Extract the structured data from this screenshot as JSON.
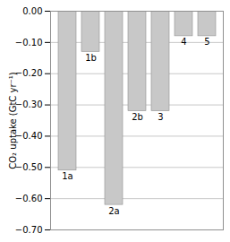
{
  "chart_data": {
    "type": "bar",
    "categories": [
      "1a",
      "1b",
      "2a",
      "2b",
      "3",
      "4",
      "5"
    ],
    "values": [
      -0.51,
      -0.13,
      -0.62,
      -0.32,
      -0.32,
      -0.08,
      -0.08
    ],
    "color": "#c8c8c8",
    "ylabel": "CO₂ uptake (GtC yr⁻¹)",
    "ylim": [
      -0.7,
      0.0
    ],
    "yticks": [
      0,
      -0.1,
      -0.2,
      -0.3,
      -0.4,
      -0.5,
      -0.6,
      -0.7
    ],
    "grid": true,
    "tick_labels": "y"
  }
}
